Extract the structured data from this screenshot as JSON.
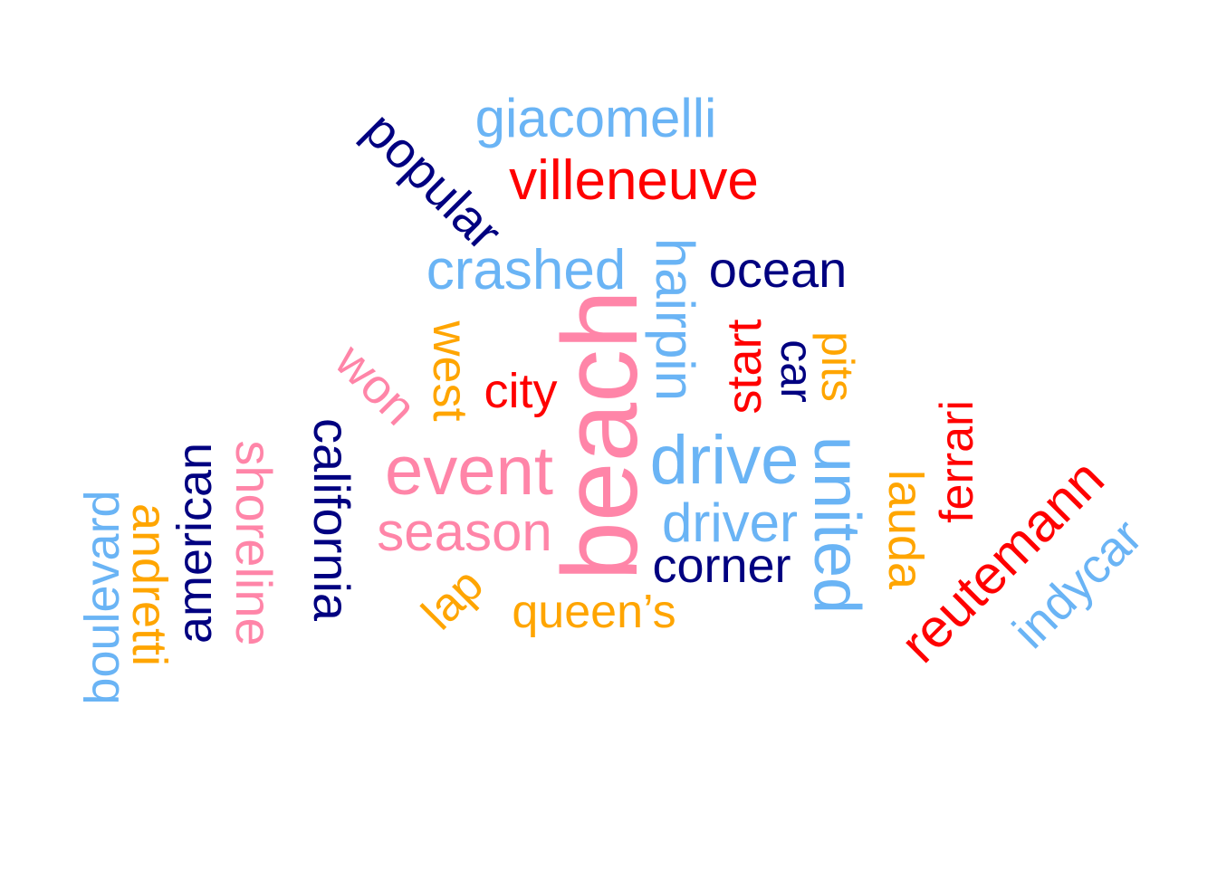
{
  "colors": {
    "navy": "#000080",
    "red": "#ff0000",
    "lightblue": "#6ab4f5",
    "pink": "#ff85a8",
    "orange": "#ffa500"
  },
  "words": [
    {
      "id": "giacomelli",
      "text": "giacomelli",
      "color": "#6ab4f5"
    },
    {
      "id": "villeneuve",
      "text": "villeneuve",
      "color": "#ff0000"
    },
    {
      "id": "popular",
      "text": "popular",
      "color": "#000080"
    },
    {
      "id": "crashed",
      "text": "crashed",
      "color": "#6ab4f5"
    },
    {
      "id": "hairpin",
      "text": "hairpin",
      "color": "#6ab4f5"
    },
    {
      "id": "ocean",
      "text": "ocean",
      "color": "#000080"
    },
    {
      "id": "won",
      "text": "won",
      "color": "#ff85a8"
    },
    {
      "id": "west",
      "text": "west",
      "color": "#ffa500"
    },
    {
      "id": "city",
      "text": "city",
      "color": "#ff0000"
    },
    {
      "id": "beach",
      "text": "beach",
      "color": "#ff85a8"
    },
    {
      "id": "start",
      "text": "start",
      "color": "#ff0000"
    },
    {
      "id": "car",
      "text": "car",
      "color": "#000080"
    },
    {
      "id": "pits",
      "text": "pits",
      "color": "#ffa500"
    },
    {
      "id": "event",
      "text": "event",
      "color": "#ff85a8"
    },
    {
      "id": "drive",
      "text": "drive",
      "color": "#6ab4f5"
    },
    {
      "id": "united",
      "text": "united",
      "color": "#6ab4f5"
    },
    {
      "id": "california",
      "text": "california",
      "color": "#000080"
    },
    {
      "id": "shoreline",
      "text": "shoreline",
      "color": "#ff85a8"
    },
    {
      "id": "american",
      "text": "american",
      "color": "#000080"
    },
    {
      "id": "andretti",
      "text": "andretti",
      "color": "#ffa500"
    },
    {
      "id": "boulevard",
      "text": "boulevard",
      "color": "#6ab4f5"
    },
    {
      "id": "season",
      "text": "season",
      "color": "#ff85a8"
    },
    {
      "id": "driver",
      "text": "driver",
      "color": "#6ab4f5"
    },
    {
      "id": "corner",
      "text": "corner",
      "color": "#000080"
    },
    {
      "id": "lauda",
      "text": "lauda",
      "color": "#ffa500"
    },
    {
      "id": "ferrari",
      "text": "ferrari",
      "color": "#ff0000"
    },
    {
      "id": "reutemann",
      "text": "reutemann",
      "color": "#ff0000"
    },
    {
      "id": "indycar",
      "text": "indycar",
      "color": "#6ab4f5"
    },
    {
      "id": "lap",
      "text": "lap",
      "color": "#ffa500"
    },
    {
      "id": "queens",
      "text": "queen’s",
      "color": "#ffa500"
    }
  ]
}
